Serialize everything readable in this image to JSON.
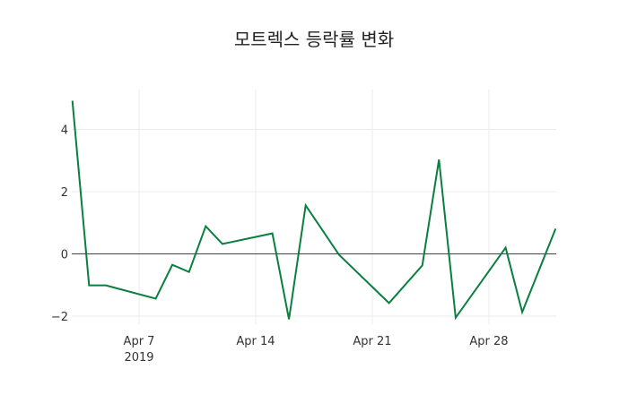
{
  "chart_data": {
    "type": "line",
    "title": "모트렉스 등락률 변화",
    "xlabel": "",
    "ylabel": "",
    "ylim": [
      -2.3,
      5.0
    ],
    "grid": true,
    "legend": "none",
    "line_color": "#0a7f3f",
    "x_ticks": [
      {
        "date": "2019-04-07",
        "label": "Apr 7",
        "sublabel": "2019"
      },
      {
        "date": "2019-04-14",
        "label": "Apr 14",
        "sublabel": ""
      },
      {
        "date": "2019-04-21",
        "label": "Apr 21",
        "sublabel": ""
      },
      {
        "date": "2019-04-28",
        "label": "Apr 28",
        "sublabel": ""
      }
    ],
    "y_ticks": [
      -2,
      0,
      2,
      4
    ],
    "series": [
      {
        "name": "등락률",
        "x": [
          "2019-04-03",
          "2019-04-04",
          "2019-04-05",
          "2019-04-08",
          "2019-04-09",
          "2019-04-10",
          "2019-04-11",
          "2019-04-12",
          "2019-04-15",
          "2019-04-16",
          "2019-04-17",
          "2019-04-19",
          "2019-04-22",
          "2019-04-24",
          "2019-04-25",
          "2019-04-26",
          "2019-04-29",
          "2019-04-30",
          "2019-05-02"
        ],
        "values": [
          4.92,
          -1.01,
          -1.01,
          -1.44,
          -0.35,
          -0.58,
          0.89,
          0.32,
          0.66,
          -2.1,
          1.56,
          -0.03,
          -1.58,
          -0.37,
          3.03,
          -2.05,
          0.2,
          -1.87,
          0.81
        ]
      }
    ]
  }
}
